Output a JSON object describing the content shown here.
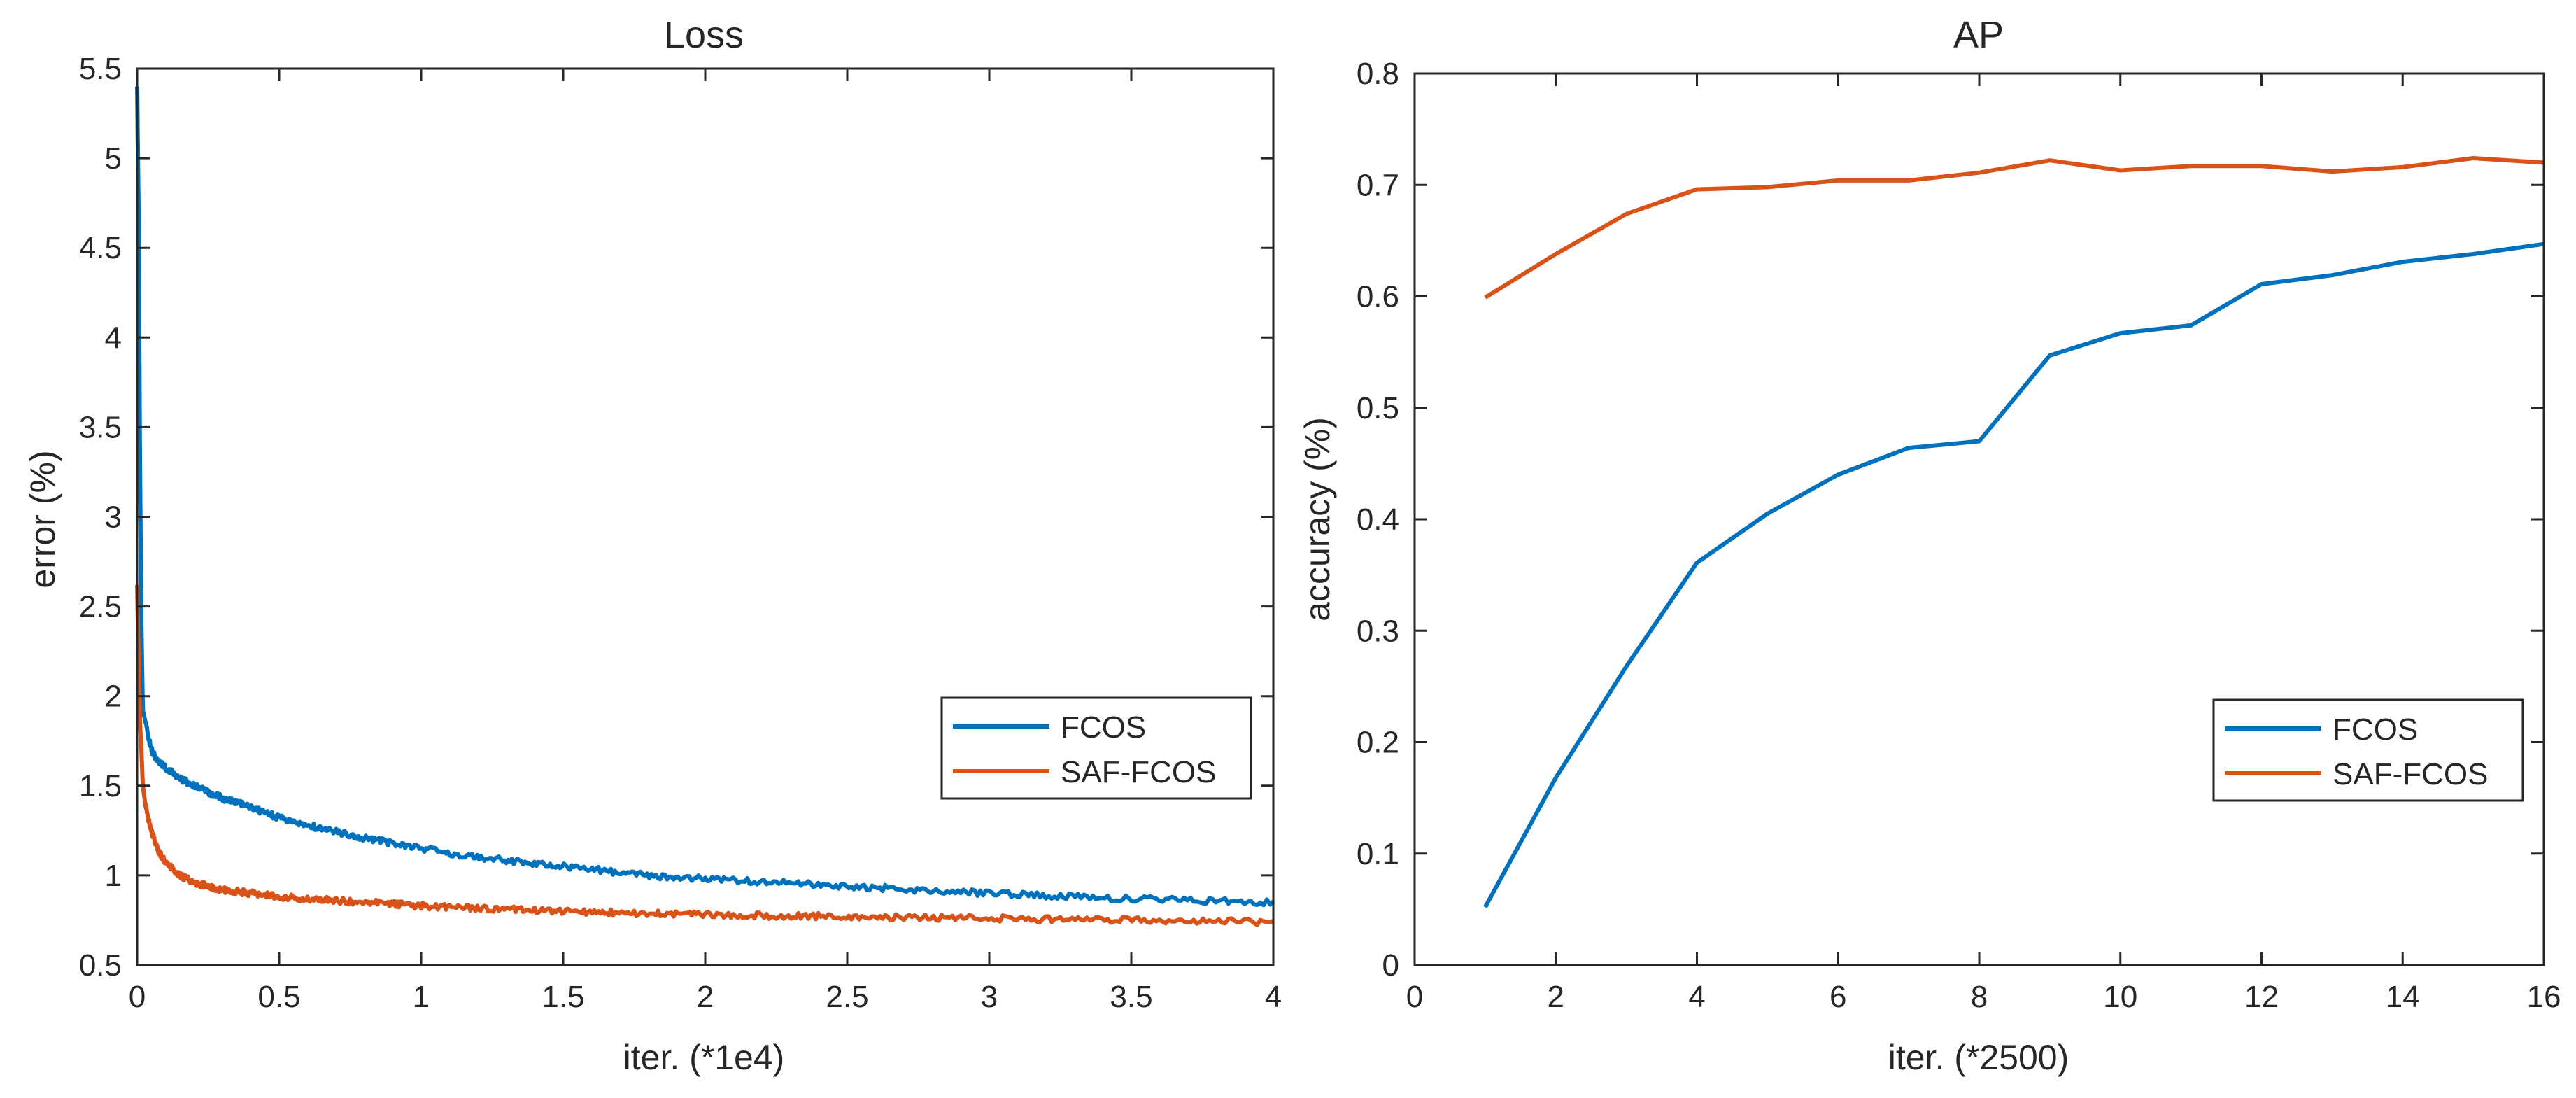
{
  "chart_data": [
    {
      "type": "line",
      "title": "Loss",
      "xlabel": "iter. (*1e4)",
      "ylabel": "error (%)",
      "xlim": [
        0,
        4
      ],
      "ylim": [
        0.5,
        5.5
      ],
      "xticks": [
        "0",
        "0.5",
        "1",
        "1.5",
        "2",
        "2.5",
        "3",
        "3.5",
        "4"
      ],
      "yticks": [
        "0.5",
        "1",
        "1.5",
        "2",
        "2.5",
        "3",
        "3.5",
        "4",
        "4.5",
        "5",
        "5.5"
      ],
      "grid": false,
      "legend_position": "right",
      "series": [
        {
          "name": "FCOS",
          "color": "#0072BD",
          "x": [
            0,
            0.005,
            0.01,
            0.015,
            0.02,
            0.03,
            0.04,
            0.05,
            0.07,
            0.1,
            0.15,
            0.2,
            0.3,
            0.4,
            0.5,
            0.6,
            0.8,
            1.0,
            1.2,
            1.5,
            1.8,
            2.0,
            2.5,
            3.0,
            3.5,
            4.0
          ],
          "y": [
            5.4,
            4.7,
            3.3,
            2.4,
            1.92,
            1.85,
            1.77,
            1.7,
            1.64,
            1.6,
            1.54,
            1.5,
            1.43,
            1.38,
            1.32,
            1.28,
            1.21,
            1.15,
            1.1,
            1.05,
            1.0,
            0.98,
            0.94,
            0.9,
            0.87,
            0.85
          ]
        },
        {
          "name": "SAF-FCOS",
          "color": "#D95319",
          "x": [
            0,
            0.005,
            0.01,
            0.015,
            0.02,
            0.03,
            0.05,
            0.07,
            0.1,
            0.15,
            0.2,
            0.3,
            0.4,
            0.5,
            0.7,
            1.0,
            1.5,
            2.0,
            2.5,
            3.0,
            3.5,
            4.0
          ],
          "y": [
            2.62,
            2.2,
            1.85,
            1.7,
            1.5,
            1.38,
            1.25,
            1.15,
            1.07,
            1.0,
            0.96,
            0.92,
            0.9,
            0.88,
            0.86,
            0.83,
            0.8,
            0.78,
            0.77,
            0.76,
            0.75,
            0.74
          ]
        }
      ]
    },
    {
      "type": "line",
      "title": "AP",
      "xlabel": "iter. (*2500)",
      "ylabel": "accuracy (%)",
      "xlim": [
        0,
        16
      ],
      "ylim": [
        0,
        0.8
      ],
      "xticks": [
        "0",
        "2",
        "4",
        "6",
        "8",
        "10",
        "12",
        "14",
        "16"
      ],
      "yticks": [
        "0",
        "0.1",
        "0.2",
        "0.3",
        "0.4",
        "0.5",
        "0.6",
        "0.7",
        "0.8"
      ],
      "grid": false,
      "legend_position": "bottom-right",
      "series": [
        {
          "name": "FCOS",
          "color": "#0072BD",
          "x": [
            1,
            2,
            3,
            4,
            5,
            6,
            7,
            8,
            9,
            10,
            11,
            12,
            13,
            14,
            15,
            16
          ],
          "y": [
            0.052,
            0.168,
            0.268,
            0.361,
            0.405,
            0.44,
            0.464,
            0.47,
            0.547,
            0.567,
            0.574,
            0.611,
            0.619,
            0.631,
            0.638,
            0.647
          ]
        },
        {
          "name": "SAF-FCOS",
          "color": "#D95319",
          "x": [
            1,
            2,
            3,
            4,
            5,
            6,
            7,
            8,
            9,
            10,
            11,
            12,
            13,
            14,
            15,
            16
          ],
          "y": [
            0.599,
            0.638,
            0.674,
            0.696,
            0.698,
            0.704,
            0.704,
            0.711,
            0.722,
            0.713,
            0.717,
            0.717,
            0.712,
            0.716,
            0.724,
            0.72
          ]
        }
      ]
    }
  ]
}
